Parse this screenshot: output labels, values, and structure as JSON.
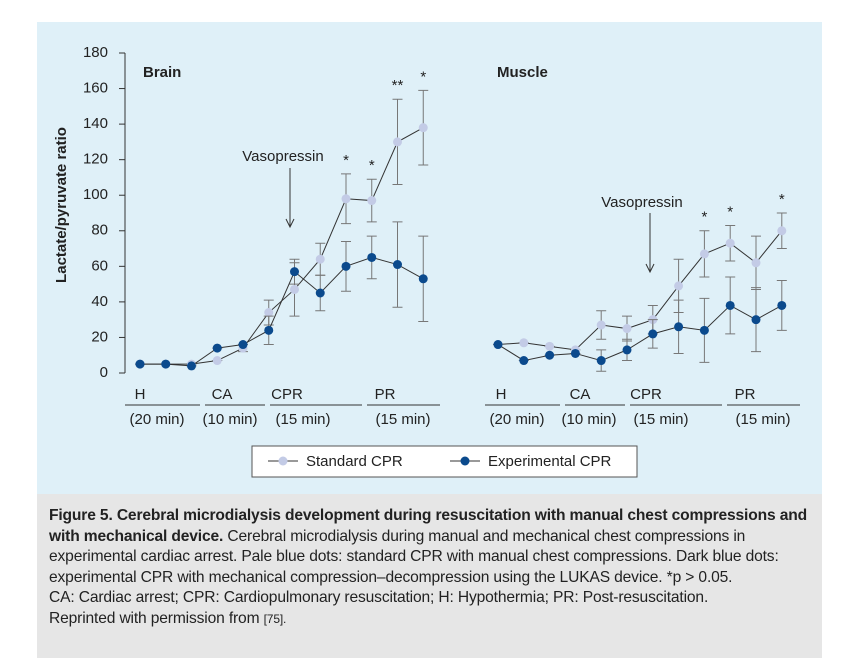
{
  "chart_data": [
    {
      "type": "line",
      "title": "Brain",
      "ylabel": "Lactate/pyruvate ratio",
      "ylim": [
        0,
        180
      ],
      "yticks": [
        0,
        20,
        40,
        60,
        80,
        100,
        120,
        140,
        160,
        180
      ],
      "annotation": "Vasopressin",
      "phases": [
        {
          "label": "H",
          "duration": "(20 min)"
        },
        {
          "label": "CA",
          "duration": "(10 min)"
        },
        {
          "label": "CPR",
          "duration": "(15 min)"
        },
        {
          "label": "PR",
          "duration": "(15 min)"
        }
      ],
      "series": [
        {
          "name": "Standard CPR",
          "color": "#c3cbe6",
          "values": [
            5,
            5,
            5,
            7,
            14,
            34,
            47,
            64,
            98,
            97,
            130,
            138
          ],
          "errors": [
            0,
            0,
            0,
            0,
            2,
            7,
            15,
            9,
            14,
            12,
            24,
            21
          ],
          "significance": [
            null,
            null,
            null,
            null,
            null,
            null,
            null,
            null,
            "*",
            "*",
            "**",
            "*"
          ]
        },
        {
          "name": "Experimental CPR",
          "color": "#0b4a8d",
          "values": [
            5,
            5,
            4,
            14,
            16,
            24,
            57,
            45,
            60,
            65,
            61,
            53
          ],
          "errors": [
            0,
            0,
            0,
            0,
            0,
            8,
            7,
            10,
            14,
            12,
            24,
            24
          ]
        }
      ]
    },
    {
      "type": "line",
      "title": "Muscle",
      "ylim": [
        0,
        180
      ],
      "annotation": "Vasopressin",
      "phases": [
        {
          "label": "H",
          "duration": "(20 min)"
        },
        {
          "label": "CA",
          "duration": "(10 min)"
        },
        {
          "label": "CPR",
          "duration": "(15 min)"
        },
        {
          "label": "PR",
          "duration": "(15 min)"
        }
      ],
      "series": [
        {
          "color": "#c3cbe6",
          "values": [
            16,
            17,
            15,
            13,
            27,
            25,
            30,
            49,
            67,
            73,
            62,
            80
          ],
          "errors": [
            0,
            0,
            0,
            0,
            8,
            7,
            8,
            15,
            13,
            10,
            15,
            10
          ],
          "significance": [
            null,
            null,
            null,
            null,
            null,
            null,
            null,
            null,
            "*",
            "*",
            null,
            "*"
          ]
        },
        {
          "color": "#0b4a8d",
          "values": [
            16,
            7,
            10,
            11,
            7,
            13,
            22,
            26,
            24,
            38,
            30,
            38
          ],
          "errors": [
            0,
            0,
            0,
            0,
            6,
            6,
            8,
            15,
            18,
            16,
            18,
            14
          ]
        }
      ]
    }
  ],
  "caption": {
    "title": "Figure 5. Cerebral microdialysis development during resuscitation with manual chest compressions and with mechanical device.",
    "text": "Cerebral microdialysis during manual and mechanical chest compressions in experimental cardiac arrest. Pale blue dots: standard CPR with manual chest compressions. Dark blue dots: experimental CPR with mechanical compression–decompression using the LUKAS device. *p > 0.05.",
    "abbreviations": "CA: Cardiac arrest; CPR: Cardiopulmonary resuscitation; H: Hypothermia; PR: Post-resuscitation.",
    "credit": "Reprinted with permission from",
    "ref": "[75]."
  }
}
